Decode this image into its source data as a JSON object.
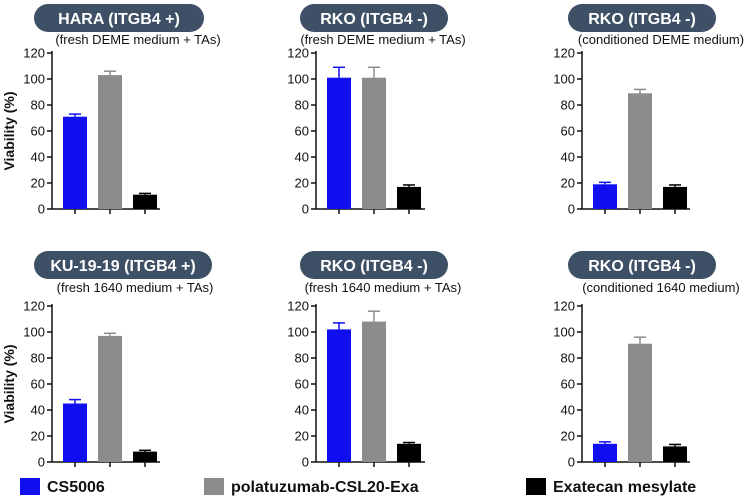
{
  "legend": [
    {
      "name": "CS5006",
      "color": "#0f0ff0"
    },
    {
      "name": "polatuzumab-CSL20-Exa",
      "color": "#8c8c8c"
    },
    {
      "name": "Exatecan mesylate",
      "color": "#000000"
    }
  ],
  "chart_data": [
    {
      "type": "bar",
      "title": "HARA (ITGB4 +)",
      "subtitle": "(fresh DEME medium + TAs)",
      "ylabel": "Viability (%)",
      "ylim": [
        0,
        120
      ],
      "yticks": [
        0,
        20,
        40,
        60,
        80,
        100,
        120
      ],
      "categories": [
        "CS5006",
        "polatuzumab-CSL20-Exa",
        "Exatecan mesylate"
      ],
      "values": [
        71,
        103,
        11
      ],
      "errors": [
        2,
        3,
        1
      ]
    },
    {
      "type": "bar",
      "title": "RKO (ITGB4 -)",
      "subtitle": "(fresh DEME medium + TAs)",
      "ylabel": "",
      "ylim": [
        0,
        120
      ],
      "yticks": [
        0,
        20,
        40,
        60,
        80,
        100,
        120
      ],
      "categories": [
        "CS5006",
        "polatuzumab-CSL20-Exa",
        "Exatecan mesylate"
      ],
      "values": [
        101,
        101,
        17
      ],
      "errors": [
        8,
        8,
        1.5
      ]
    },
    {
      "type": "bar",
      "title": "RKO (ITGB4 -)",
      "subtitle": "(conditioned DEME medium)",
      "ylabel": "",
      "ylim": [
        0,
        120
      ],
      "yticks": [
        0,
        20,
        40,
        60,
        80,
        100,
        120
      ],
      "categories": [
        "CS5006",
        "polatuzumab-CSL20-Exa",
        "Exatecan mesylate"
      ],
      "values": [
        19,
        89,
        17
      ],
      "errors": [
        1.5,
        3,
        1.5
      ]
    },
    {
      "type": "bar",
      "title": "KU-19-19 (ITGB4 +)",
      "subtitle": "(fresh 1640 medium + TAs)",
      "ylabel": "Viability (%)",
      "ylim": [
        0,
        120
      ],
      "yticks": [
        0,
        20,
        40,
        60,
        80,
        100,
        120
      ],
      "categories": [
        "CS5006",
        "polatuzumab-CSL20-Exa",
        "Exatecan mesylate"
      ],
      "values": [
        45,
        97,
        8
      ],
      "errors": [
        3,
        2,
        1
      ]
    },
    {
      "type": "bar",
      "title": "RKO (ITGB4 -)",
      "subtitle": "(fresh 1640 medium + TAs)",
      "ylabel": "",
      "ylim": [
        0,
        120
      ],
      "yticks": [
        0,
        20,
        40,
        60,
        80,
        100,
        120
      ],
      "categories": [
        "CS5006",
        "polatuzumab-CSL20-Exa",
        "Exatecan mesylate"
      ],
      "values": [
        102,
        108,
        14
      ],
      "errors": [
        5,
        8,
        1
      ]
    },
    {
      "type": "bar",
      "title": "RKO (ITGB4 -)",
      "subtitle": "(conditioned 1640 medium)",
      "ylabel": "",
      "ylim": [
        0,
        120
      ],
      "yticks": [
        0,
        20,
        40,
        60,
        80,
        100,
        120
      ],
      "categories": [
        "CS5006",
        "polatuzumab-CSL20-Exa",
        "Exatecan mesylate"
      ],
      "values": [
        14,
        91,
        12
      ],
      "errors": [
        1.5,
        5,
        1.5
      ]
    }
  ]
}
